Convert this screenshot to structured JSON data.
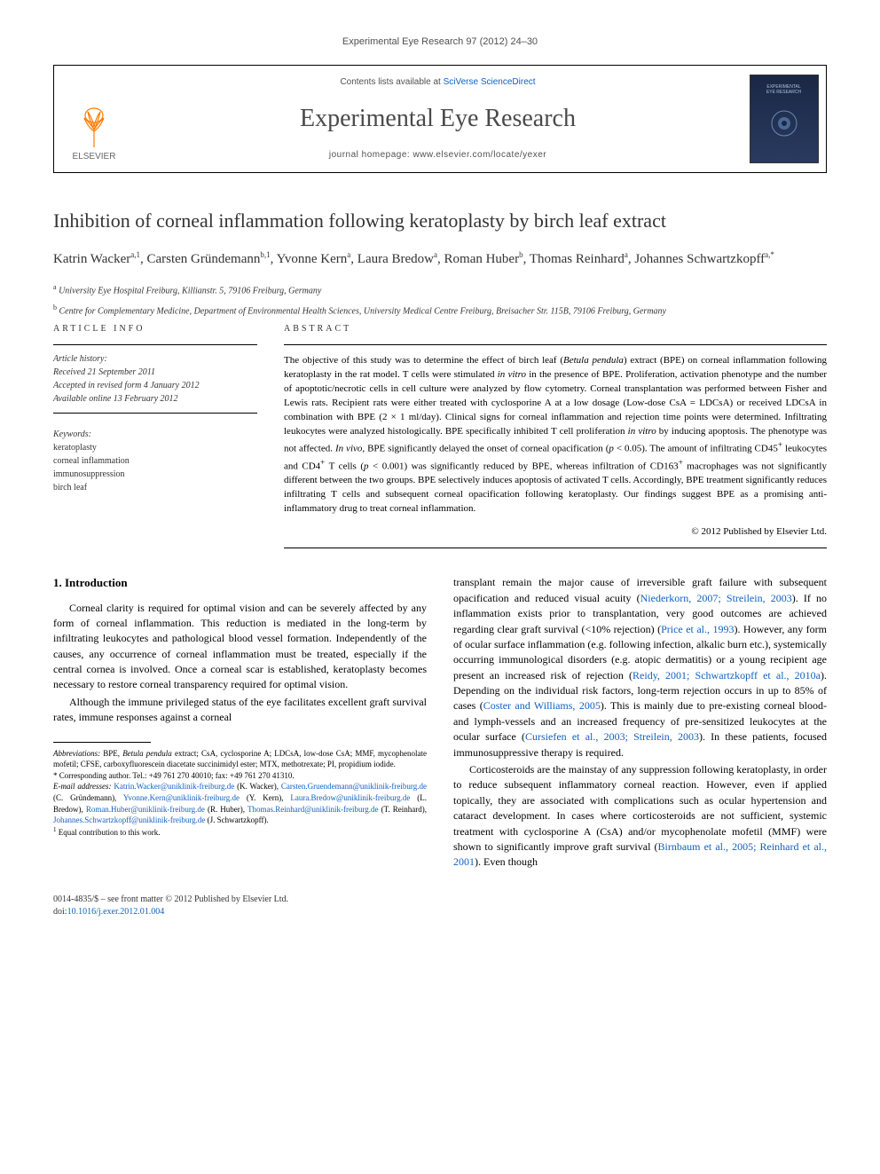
{
  "journal_ref": "Experimental Eye Research 97 (2012) 24–30",
  "header": {
    "contents_prefix": "Contents lists available at ",
    "contents_link": "SciVerse ScienceDirect",
    "journal_name": "Experimental Eye Research",
    "homepage_prefix": "journal homepage: ",
    "homepage_url": "www.elsevier.com/locate/yexer",
    "elsevier_label": "ELSEVIER",
    "cover_line1": "EXPERIMENTAL",
    "cover_line2": "EYE RESEARCH",
    "colors": {
      "link": "#1060c0",
      "cover_bg_top": "#1a2845",
      "cover_bg_bottom": "#2a3a5f",
      "elsevier_orange": "#ff7a00"
    }
  },
  "title": "Inhibition of corneal inflammation following keratoplasty by birch leaf extract",
  "authors_html": "Katrin Wacker<sup>a,1</sup>, Carsten Gründemann<sup>b,1</sup>, Yvonne Kern<sup>a</sup>, Laura Bredow<sup>a</sup>, Roman Huber<sup>b</sup>, Thomas Reinhard<sup>a</sup>, Johannes Schwartzkopff<sup>a,*</sup>",
  "affiliations": [
    {
      "sup": "a",
      "text": "University Eye Hospital Freiburg, Killianstr. 5, 79106 Freiburg, Germany"
    },
    {
      "sup": "b",
      "text": "Centre for Complementary Medicine, Department of Environmental Health Sciences, University Medical Centre Freiburg, Breisacher Str. 115B, 79106 Freiburg, Germany"
    }
  ],
  "article_info": {
    "heading": "ARTICLE INFO",
    "history_label": "Article history:",
    "received": "Received 21 September 2011",
    "accepted": "Accepted in revised form 4 January 2012",
    "online": "Available online 13 February 2012",
    "keywords_label": "Keywords:",
    "keywords": [
      "keratoplasty",
      "corneal inflammation",
      "immunosuppression",
      "birch leaf"
    ]
  },
  "abstract": {
    "heading": "ABSTRACT",
    "text": "The objective of this study was to determine the effect of birch leaf (<i>Betula pendula</i>) extract (BPE) on corneal inflammation following keratoplasty in the rat model. T cells were stimulated <i>in vitro</i> in the presence of BPE. Proliferation, activation phenotype and the number of apoptotic/necrotic cells in cell culture were analyzed by flow cytometry. Corneal transplantation was performed between Fisher and Lewis rats. Recipient rats were either treated with cyclosporine A at a low dosage (Low-dose CsA = LDCsA) or received LDCsA in combination with BPE (2 × 1 ml/day). Clinical signs for corneal inflammation and rejection time points were determined. Infiltrating leukocytes were analyzed histologically. BPE specifically inhibited T cell proliferation <i>in vitro</i> by inducing apoptosis. The phenotype was not affected. <i>In vivo</i>, BPE significantly delayed the onset of corneal opacification (<i>p</i> < 0.05). The amount of infiltrating CD45<sup>+</sup> leukocytes and CD4<sup>+</sup> T cells (<i>p</i> < 0.001) was significantly reduced by BPE, whereas infiltration of CD163<sup>+</sup> macrophages was not significantly different between the two groups. BPE selectively induces apoptosis of activated T cells. Accordingly, BPE treatment significantly reduces infiltrating T cells and subsequent corneal opacification following keratoplasty. Our findings suggest BPE as a promising anti-inflammatory drug to treat corneal inflammation.",
    "copyright": "© 2012 Published by Elsevier Ltd."
  },
  "body": {
    "section_heading": "1. Introduction",
    "left_paras": [
      "Corneal clarity is required for optimal vision and can be severely affected by any form of corneal inflammation. This reduction is mediated in the long-term by infiltrating leukocytes and pathological blood vessel formation. Independently of the causes, any occurrence of corneal inflammation must be treated, especially if the central cornea is involved. Once a corneal scar is established, keratoplasty becomes necessary to restore corneal transparency required for optimal vision.",
      "Although the immune privileged status of the eye facilitates excellent graft survival rates, immune responses against a corneal"
    ],
    "right_paras": [
      "transplant remain the major cause of irreversible graft failure with subsequent opacification and reduced visual acuity (<a href=\"#\">Niederkorn, 2007; Streilein, 2003</a>). If no inflammation exists prior to transplantation, very good outcomes are achieved regarding clear graft survival (<10% rejection) (<a href=\"#\">Price et al., 1993</a>). However, any form of ocular surface inflammation (e.g. following infection, alkalic burn etc.), systemically occurring immunological disorders (e.g. atopic dermatitis) or a young recipient age present an increased risk of rejection (<a href=\"#\">Reidy, 2001; Schwartzkopff et al., 2010a</a>). Depending on the individual risk factors, long-term rejection occurs in up to 85% of cases (<a href=\"#\">Coster and Williams, 2005</a>). This is mainly due to pre-existing corneal blood- and lymph-vessels and an increased frequency of pre-sensitized leukocytes at the ocular surface (<a href=\"#\">Cursiefen et al., 2003; Streilein, 2003</a>). In these patients, focused immunosuppressive therapy is required.",
      "Corticosteroids are the mainstay of any suppression following keratoplasty, in order to reduce subsequent inflammatory corneal reaction. However, even if applied topically, they are associated with complications such as ocular hypertension and cataract development. In cases where corticosteroids are not sufficient, systemic treatment with cyclosporine A (CsA) and/or mycophenolate mofetil (MMF) were shown to significantly improve graft survival (<a href=\"#\">Birnbaum et al., 2005; Reinhard et al., 2001</a>). Even though"
    ]
  },
  "footnotes": {
    "abbrev_label": "Abbreviations:",
    "abbrev_text": " BPE, <i>Betula pendula</i> extract; CsA, cyclosporine A; LDCsA, low-dose CsA; MMF, mycophenolate mofetil; CFSE, carboxyfluorescein diacetate succinimidyl ester; MTX, methotrexate; PI, propidium iodide.",
    "corresponding": "* Corresponding author. Tel.: +49 761 270 40010; fax: +49 761 270 41310.",
    "emails_label": "E-mail addresses:",
    "emails": [
      {
        "addr": "Katrin.Wacker@uniklinik-freiburg.de",
        "who": "(K. Wacker)"
      },
      {
        "addr": "Carsten.Gruendemann@uniklinik-freiburg.de",
        "who": "(C. Gründemann)"
      },
      {
        "addr": "Yvonne.Kern@uniklinik-freiburg.de",
        "who": "(Y. Kern)"
      },
      {
        "addr": "Laura.Bredow@uniklinik-freiburg.de",
        "who": "(L. Bredow)"
      },
      {
        "addr": "Roman.Huber@uniklinik-freiburg.de",
        "who": "(R. Huber)"
      },
      {
        "addr": "Thomas.Reinhard@uniklinik-freiburg.de",
        "who": "(T. Reinhard)"
      },
      {
        "addr": "Johannes.Schwartzkopff@uniklinik-freiburg.de",
        "who": "(J. Schwartzkopff)"
      }
    ],
    "equal": "Equal contribution to this work.",
    "equal_sup": "1"
  },
  "footer": {
    "line1": "0014-4835/$ – see front matter © 2012 Published by Elsevier Ltd.",
    "doi_prefix": "doi:",
    "doi": "10.1016/j.exer.2012.01.004"
  }
}
